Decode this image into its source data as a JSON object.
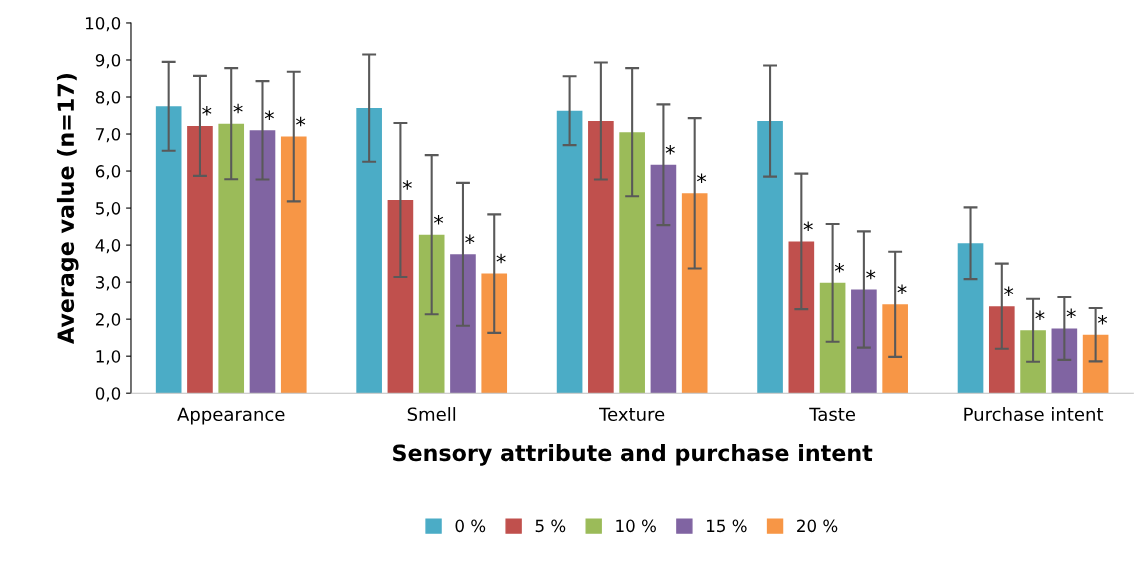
{
  "chart_data": {
    "type": "bar",
    "xlabel": "Sensory attribute and purchase intent",
    "ylabel": "Average value (n=17)",
    "categories": [
      "Appearance",
      "Smell",
      "Texture",
      "Taste",
      "Purchase intent"
    ],
    "series": [
      {
        "name": "0 %",
        "color": "#4bacc6",
        "values": [
          7.75,
          7.7,
          7.63,
          7.35,
          4.05
        ],
        "errors": [
          1.2,
          1.45,
          0.93,
          1.5,
          0.97
        ]
      },
      {
        "name": "5 %",
        "color": "#c0504d",
        "values": [
          7.22,
          5.22,
          7.35,
          4.1,
          2.35
        ],
        "errors": [
          1.35,
          2.08,
          1.58,
          1.83,
          1.15
        ],
        "value_labels": [
          "*",
          "*",
          null,
          "*",
          "*"
        ]
      },
      {
        "name": "10 %",
        "color": "#9bbb59",
        "values": [
          7.28,
          4.28,
          7.05,
          2.98,
          1.7
        ],
        "errors": [
          1.5,
          2.15,
          1.73,
          1.59,
          0.85
        ],
        "value_labels": [
          "*",
          "*",
          null,
          "*",
          "*"
        ]
      },
      {
        "name": "15 %",
        "color": "#8064a2",
        "values": [
          7.1,
          3.75,
          6.17,
          2.8,
          1.75
        ],
        "errors": [
          1.33,
          1.93,
          1.63,
          1.57,
          0.85
        ],
        "value_labels": [
          "*",
          "*",
          "*",
          "*",
          "*"
        ]
      },
      {
        "name": "20 %",
        "color": "#f79646",
        "values": [
          6.93,
          3.23,
          5.4,
          2.4,
          1.58
        ],
        "errors": [
          1.75,
          1.6,
          2.03,
          1.42,
          0.72
        ],
        "value_labels": [
          "*",
          "*",
          "*",
          "*",
          "*"
        ]
      }
    ],
    "ylim": [
      0,
      10
    ],
    "yticks": [
      {
        "value": 0,
        "label": "0,0"
      },
      {
        "value": 1,
        "label": "1,0"
      },
      {
        "value": 2,
        "label": "2,0"
      },
      {
        "value": 3,
        "label": "3,0"
      },
      {
        "value": 4,
        "label": "4,0"
      },
      {
        "value": 5,
        "label": "5,0"
      },
      {
        "value": 6,
        "label": "6,0"
      },
      {
        "value": 7,
        "label": "7,0"
      },
      {
        "value": 8,
        "label": "8,0"
      },
      {
        "value": 9,
        "label": "9,0"
      },
      {
        "value": 10,
        "label": "10,0"
      }
    ],
    "grid": false,
    "legend": "bottom"
  }
}
